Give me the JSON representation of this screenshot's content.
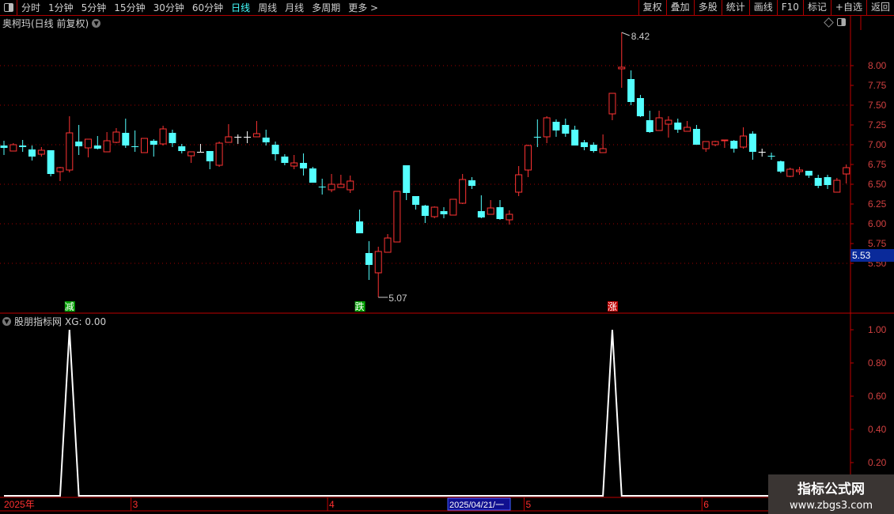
{
  "toolbar": {
    "periods": [
      "分时",
      "1分钟",
      "5分钟",
      "15分钟",
      "30分钟",
      "60分钟",
      "日线",
      "周线",
      "月线",
      "多周期",
      "更多 >"
    ],
    "active_period": "日线",
    "actions": [
      "复权",
      "叠加",
      "多股",
      "统计",
      "画线",
      "F10",
      "标记",
      "+自选",
      "返回"
    ]
  },
  "main_title": "奥柯玛(日线 前复权)",
  "indicator_title": "股朋指标网",
  "indicator_value": "XG: 0.00",
  "colors": {
    "up": "#ff3333",
    "down": "#54ffff",
    "flat": "#ffffff",
    "grid": "#a00000",
    "axis": "#c00000",
    "accent": "#00ffff"
  },
  "chart_data": [
    {
      "type": "candlestick",
      "price_axis": {
        "ticks": [
          "8.00",
          "7.75",
          "7.50",
          "7.25",
          "7.00",
          "6.75",
          "6.50",
          "6.25",
          "6.00",
          "5.75",
          "5.50"
        ],
        "range": [
          5.0,
          8.83
        ],
        "grid_every": 0.5
      },
      "current_price": "5.53",
      "high_label": "8.42",
      "low_label": "5.07",
      "ohlc": [
        [
          6.99,
          7.05,
          6.87,
          6.96
        ],
        [
          6.92,
          7.02,
          6.92,
          7.0
        ],
        [
          6.99,
          7.06,
          6.91,
          6.97
        ],
        [
          6.94,
          6.99,
          6.8,
          6.85
        ],
        [
          6.88,
          6.97,
          6.85,
          6.93
        ],
        [
          6.93,
          6.93,
          6.6,
          6.63
        ],
        [
          6.66,
          6.72,
          6.54,
          6.71
        ],
        [
          6.68,
          7.36,
          6.65,
          7.15
        ],
        [
          7.04,
          7.25,
          6.87,
          6.98
        ],
        [
          6.96,
          7.07,
          6.84,
          7.07
        ],
        [
          6.99,
          7.11,
          6.94,
          6.95
        ],
        [
          6.91,
          7.16,
          6.91,
          7.05
        ],
        [
          7.03,
          7.21,
          7.02,
          7.16
        ],
        [
          7.15,
          7.33,
          6.96,
          6.99
        ],
        [
          6.98,
          7.18,
          6.91,
          6.97
        ],
        [
          6.9,
          7.08,
          6.9,
          7.08
        ],
        [
          7.05,
          7.07,
          6.85,
          7.0
        ],
        [
          7.01,
          7.24,
          6.99,
          7.2
        ],
        [
          7.15,
          7.19,
          6.97,
          7.02
        ],
        [
          6.98,
          7.01,
          6.89,
          6.92
        ],
        [
          6.86,
          6.91,
          6.77,
          6.91
        ],
        [
          6.91,
          7.01,
          6.9,
          6.91
        ],
        [
          6.92,
          6.92,
          6.69,
          6.79
        ],
        [
          6.74,
          7.04,
          6.72,
          7.02
        ],
        [
          7.03,
          7.26,
          7.03,
          7.1
        ],
        [
          7.1,
          7.13,
          7.01,
          7.1
        ],
        [
          7.1,
          7.17,
          7.02,
          7.1
        ],
        [
          7.1,
          7.3,
          7.1,
          7.14
        ],
        [
          7.09,
          7.19,
          6.99,
          7.03
        ],
        [
          7.0,
          7.04,
          6.8,
          6.88
        ],
        [
          6.85,
          6.88,
          6.74,
          6.77
        ],
        [
          6.73,
          6.87,
          6.69,
          6.77
        ],
        [
          6.77,
          6.89,
          6.61,
          6.7
        ],
        [
          6.7,
          6.72,
          6.52,
          6.52
        ],
        [
          6.47,
          6.57,
          6.37,
          6.46
        ],
        [
          6.43,
          6.63,
          6.4,
          6.5
        ],
        [
          6.46,
          6.62,
          6.46,
          6.5
        ],
        [
          6.43,
          6.61,
          6.39,
          6.54
        ],
        [
          6.03,
          6.18,
          5.88,
          5.88
        ],
        [
          5.63,
          5.78,
          5.29,
          5.48
        ],
        [
          5.38,
          5.71,
          5.07,
          5.65
        ],
        [
          5.64,
          5.87,
          5.64,
          5.82
        ],
        [
          5.77,
          6.41,
          5.77,
          6.41
        ],
        [
          6.74,
          6.74,
          6.3,
          6.39
        ],
        [
          6.35,
          6.35,
          6.18,
          6.24
        ],
        [
          6.23,
          6.24,
          6.01,
          6.1
        ],
        [
          6.09,
          6.22,
          6.07,
          6.21
        ],
        [
          6.16,
          6.21,
          6.07,
          6.12
        ],
        [
          6.11,
          6.31,
          6.11,
          6.31
        ],
        [
          6.26,
          6.63,
          6.25,
          6.56
        ],
        [
          6.55,
          6.59,
          6.44,
          6.48
        ],
        [
          6.16,
          6.36,
          6.07,
          6.08
        ],
        [
          6.12,
          6.3,
          6.12,
          6.2
        ],
        [
          6.21,
          6.3,
          6.05,
          6.06
        ],
        [
          6.05,
          6.17,
          5.99,
          6.12
        ],
        [
          6.4,
          6.73,
          6.35,
          6.62
        ],
        [
          6.68,
          7.0,
          6.59,
          6.99
        ],
        [
          7.1,
          7.32,
          6.97,
          7.09
        ],
        [
          7.1,
          7.36,
          7.02,
          7.34
        ],
        [
          7.29,
          7.32,
          7.1,
          7.18
        ],
        [
          7.25,
          7.33,
          7.1,
          7.14
        ],
        [
          7.19,
          7.24,
          6.99,
          6.99
        ],
        [
          7.03,
          7.06,
          6.93,
          6.97
        ],
        [
          7.0,
          7.03,
          6.9,
          6.92
        ],
        [
          6.9,
          7.13,
          6.9,
          6.95
        ],
        [
          7.39,
          7.65,
          7.31,
          7.65
        ],
        [
          7.96,
          8.42,
          7.72,
          7.98
        ],
        [
          7.83,
          7.94,
          7.5,
          7.54
        ],
        [
          7.59,
          7.63,
          7.35,
          7.36
        ],
        [
          7.31,
          7.43,
          7.15,
          7.16
        ],
        [
          7.18,
          7.43,
          7.18,
          7.34
        ],
        [
          7.26,
          7.36,
          7.09,
          7.31
        ],
        [
          7.28,
          7.33,
          7.15,
          7.19
        ],
        [
          7.17,
          7.3,
          7.17,
          7.22
        ],
        [
          7.2,
          7.25,
          7.0,
          7.0
        ],
        [
          6.95,
          7.04,
          6.91,
          7.04
        ],
        [
          7.0,
          7.05,
          6.98,
          7.04
        ],
        [
          7.05,
          7.06,
          6.96,
          7.06
        ],
        [
          7.05,
          7.06,
          6.9,
          6.95
        ],
        [
          6.97,
          7.22,
          6.95,
          7.11
        ],
        [
          7.14,
          7.17,
          6.81,
          6.91
        ],
        [
          6.91,
          6.95,
          6.85,
          6.91
        ],
        [
          6.86,
          6.9,
          6.81,
          6.855
        ],
        [
          6.79,
          6.8,
          6.64,
          6.66
        ],
        [
          6.6,
          6.71,
          6.59,
          6.69
        ],
        [
          6.66,
          6.72,
          6.62,
          6.68
        ],
        [
          6.67,
          6.67,
          6.58,
          6.61
        ],
        [
          6.58,
          6.62,
          6.45,
          6.48
        ],
        [
          6.59,
          6.62,
          6.44,
          6.49
        ],
        [
          6.4,
          6.58,
          6.4,
          6.55
        ],
        [
          6.63,
          6.75,
          6.51,
          6.71
        ]
      ],
      "signals": [
        {
          "index": 7,
          "text": "减",
          "color": "#00a000"
        },
        {
          "index": 38,
          "text": "跌",
          "color": "#00a000"
        },
        {
          "index": 65,
          "text": "涨",
          "color": "#c00000"
        }
      ]
    },
    {
      "type": "line",
      "series_name": "XG",
      "y_axis": {
        "ticks": [
          "1.00",
          "0.80",
          "0.60",
          "0.40",
          "0.20"
        ],
        "range": [
          0,
          1.05
        ]
      },
      "peaks_at_index": [
        7,
        65
      ],
      "peak_value": 1.0,
      "base_value": 0.0
    }
  ],
  "date_axis": {
    "labels": [
      {
        "text": "2025年",
        "index": 0
      },
      {
        "text": "3",
        "index": 14
      },
      {
        "text": "4",
        "index": 35
      },
      {
        "text": "5",
        "index": 56
      },
      {
        "text": "6",
        "index": 75
      }
    ],
    "cursor_label": "2025/04/21/一"
  },
  "watermark": {
    "line1": "指标公式网",
    "line2": "www.zbgs3.com"
  }
}
